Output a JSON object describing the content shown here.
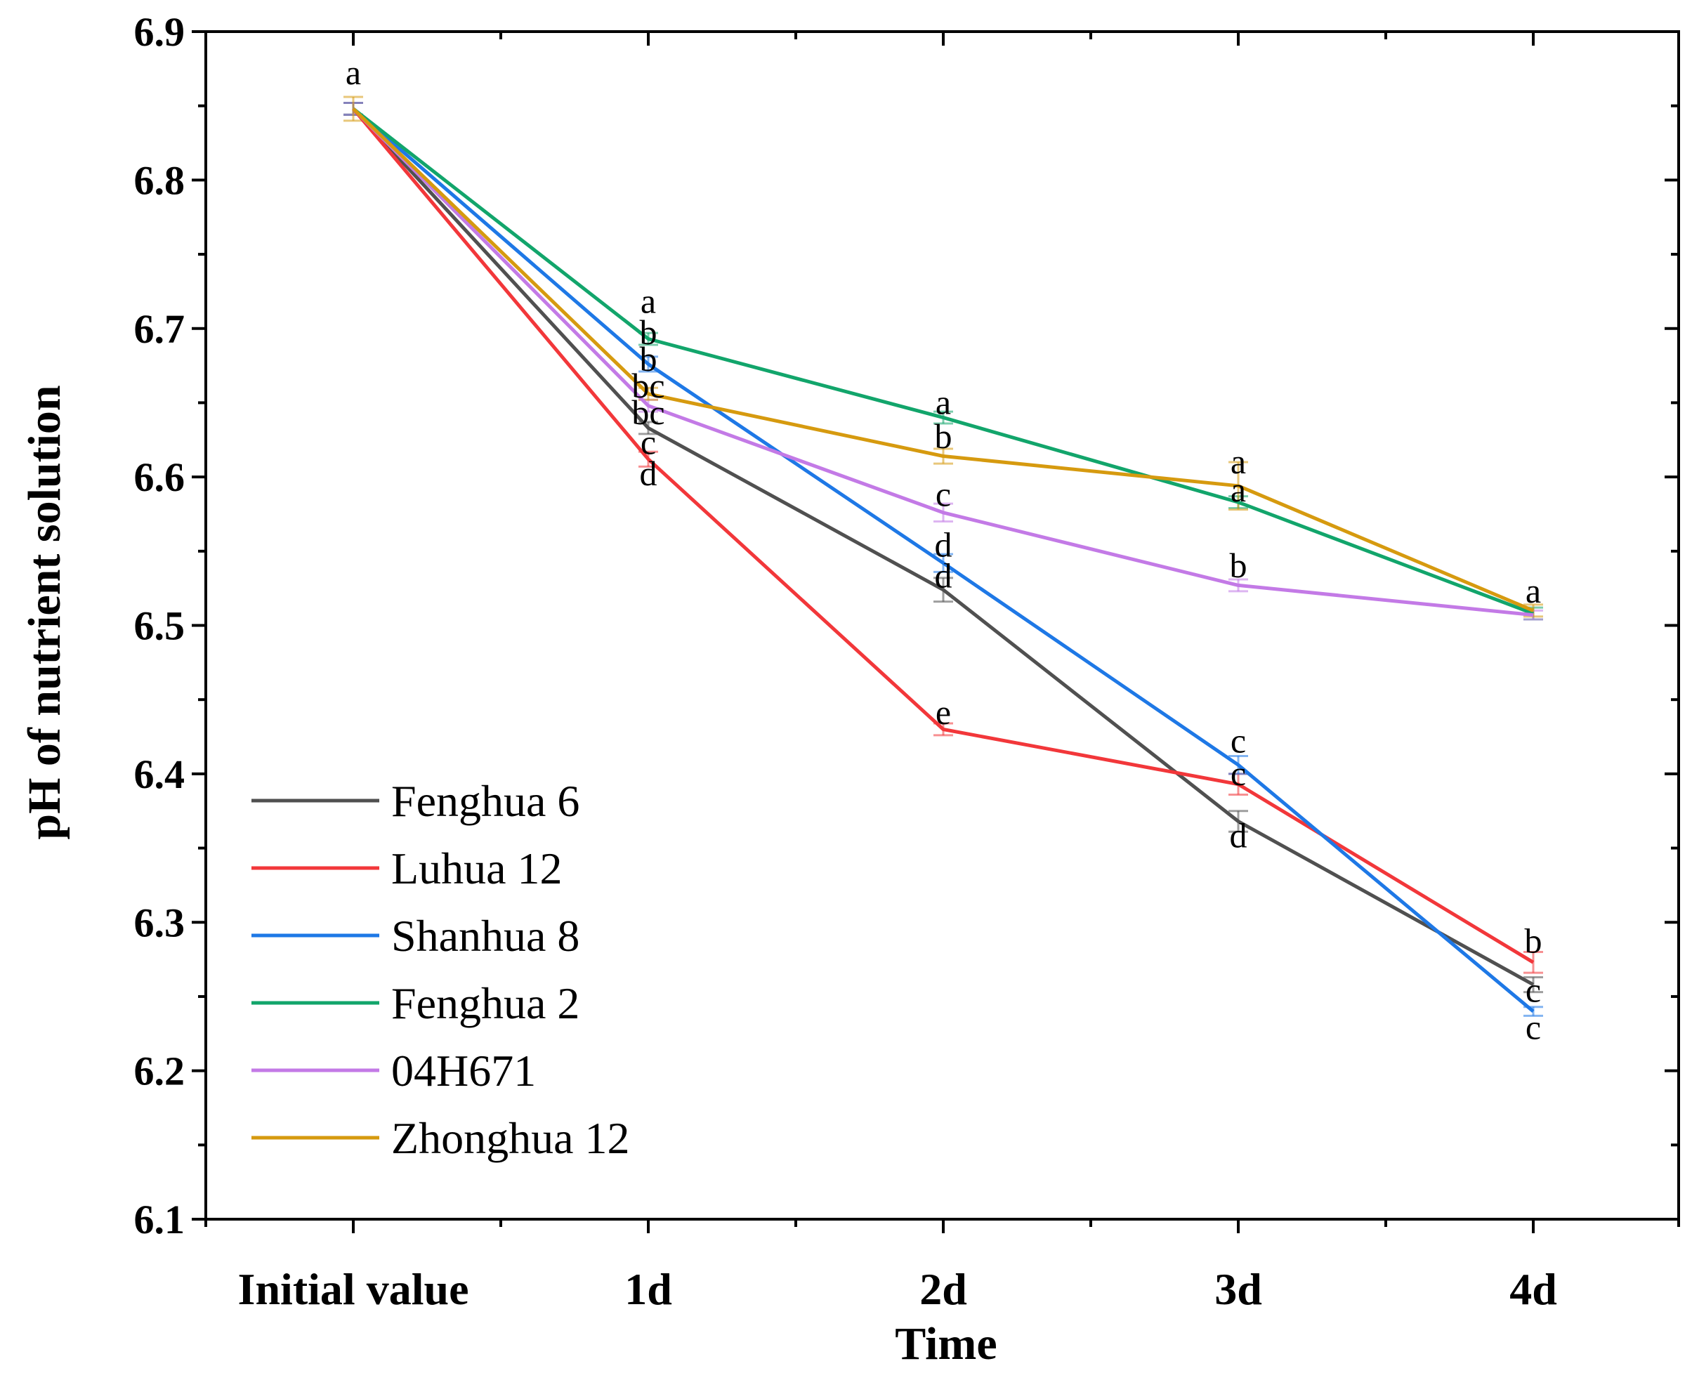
{
  "chart_data": {
    "type": "line",
    "title": "",
    "xlabel": "Time",
    "ylabel": "pH of nutrient solution",
    "categories": [
      "Initial value",
      "1d",
      "2d",
      "3d",
      "4d"
    ],
    "ylim": [
      6.1,
      6.9
    ],
    "yticks": [
      "6.1",
      "6.2",
      "6.3",
      "6.4",
      "6.5",
      "6.6",
      "6.7",
      "6.8",
      "6.9"
    ],
    "legend_position": "bottom-left",
    "series": [
      {
        "name": "Fenghua 6",
        "color": "#505050",
        "values": [
          6.848,
          6.633,
          6.524,
          6.368,
          6.258
        ],
        "errors": [
          0.004,
          0.004,
          0.008,
          0.007,
          0.005
        ]
      },
      {
        "name": "Luhua 12",
        "color": "#f2373a",
        "values": [
          6.848,
          6.612,
          6.43,
          6.393,
          6.273
        ],
        "errors": [
          0.004,
          0.005,
          0.004,
          0.007,
          0.007
        ]
      },
      {
        "name": "Shanhua 8",
        "color": "#1e78e6",
        "values": [
          6.848,
          6.676,
          6.542,
          6.406,
          6.24
        ],
        "errors": [
          0.004,
          0.005,
          0.006,
          0.006,
          0.003
        ]
      },
      {
        "name": "Fenghua 2",
        "color": "#12a56b",
        "values": [
          6.848,
          6.693,
          6.64,
          6.583,
          6.508
        ],
        "errors": [
          0.004,
          0.004,
          0.004,
          0.004,
          0.004
        ]
      },
      {
        "name": "04H671",
        "color": "#c37ae6",
        "values": [
          6.848,
          6.648,
          6.576,
          6.527,
          6.507
        ],
        "errors": [
          0.004,
          0.004,
          0.006,
          0.004,
          0.003
        ]
      },
      {
        "name": "Zhonghua 12",
        "color": "#d69a0f",
        "values": [
          6.848,
          6.656,
          6.614,
          6.594,
          6.51
        ],
        "errors": [
          0.008,
          0.004,
          0.005,
          0.016,
          0.004
        ]
      }
    ],
    "significance_labels": [
      {
        "category": "Initial value",
        "y": 6.872,
        "text": "a"
      },
      {
        "category": "1d",
        "y": 6.718,
        "text": "a"
      },
      {
        "category": "1d",
        "y": 6.697,
        "text": "b"
      },
      {
        "category": "1d",
        "y": 6.679,
        "text": "b"
      },
      {
        "category": "1d",
        "y": 6.661,
        "text": "bc"
      },
      {
        "category": "1d",
        "y": 6.643,
        "text": "bc"
      },
      {
        "category": "1d",
        "y": 6.623,
        "text": "c"
      },
      {
        "category": "1d",
        "y": 6.602,
        "text": "d"
      },
      {
        "category": "2d",
        "y": 6.65,
        "text": "a"
      },
      {
        "category": "2d",
        "y": 6.627,
        "text": "b"
      },
      {
        "category": "2d",
        "y": 6.588,
        "text": "c"
      },
      {
        "category": "2d",
        "y": 6.554,
        "text": "d"
      },
      {
        "category": "2d",
        "y": 6.533,
        "text": "d"
      },
      {
        "category": "2d",
        "y": 6.441,
        "text": "e"
      },
      {
        "category": "3d",
        "y": 6.61,
        "text": "a"
      },
      {
        "category": "3d",
        "y": 6.591,
        "text": "a"
      },
      {
        "category": "3d",
        "y": 6.54,
        "text": "b"
      },
      {
        "category": "3d",
        "y": 6.422,
        "text": "c"
      },
      {
        "category": "3d",
        "y": 6.4,
        "text": "c"
      },
      {
        "category": "3d",
        "y": 6.358,
        "text": "d"
      },
      {
        "category": "4d",
        "y": 6.523,
        "text": "a"
      },
      {
        "category": "4d",
        "y": 6.287,
        "text": "b"
      },
      {
        "category": "4d",
        "y": 6.254,
        "text": "c"
      },
      {
        "category": "4d",
        "y": 6.229,
        "text": "c"
      }
    ]
  }
}
